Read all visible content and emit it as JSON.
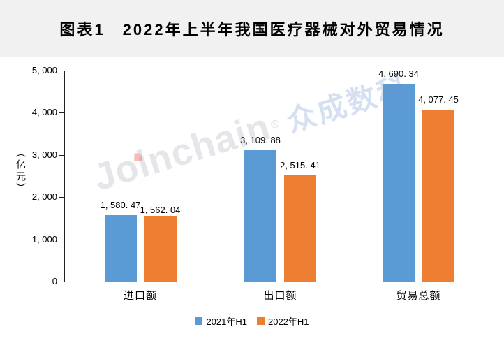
{
  "header": {
    "title": "图表1　2022年上半年我国医疗器械对外贸易情况"
  },
  "watermark": {
    "brand": "Joinchain",
    "reg": "®",
    "cn": "众成数科"
  },
  "colors": {
    "series_2021": "#5B9BD5",
    "series_2022": "#ED7D31",
    "header_bg": "#F1F1F1",
    "axis_line": "#1F1F1F",
    "baseline": "#C9CDD4",
    "text": "#000000"
  },
  "chart_data": {
    "type": "bar",
    "title": "图表1　2022年上半年我国医疗器械对外贸易情况",
    "categories": [
      "进口额",
      "出口额",
      "贸易总额"
    ],
    "series": [
      {
        "name": "2021年H1",
        "color_key": "series_2021",
        "values": [
          1580.47,
          3109.88,
          4690.34
        ],
        "value_labels": [
          "1, 580. 47",
          "3, 109. 88",
          "4, 690. 34"
        ]
      },
      {
        "name": "2022年H1",
        "color_key": "series_2022",
        "values": [
          1562.04,
          2515.41,
          4077.45
        ],
        "value_labels": [
          "1, 562. 04",
          "2, 515. 41",
          "4, 077. 45"
        ]
      }
    ],
    "xlabel": "",
    "ylabel": "（亿元）",
    "ylim": [
      0,
      5000
    ],
    "y_ticks": [
      0,
      1000,
      2000,
      3000,
      4000,
      5000
    ],
    "y_tick_labels": [
      "0",
      "1, 000",
      "2, 000",
      "3, 000",
      "4, 000",
      "5, 000"
    ],
    "grid": false,
    "legend_position": "bottom-center"
  }
}
